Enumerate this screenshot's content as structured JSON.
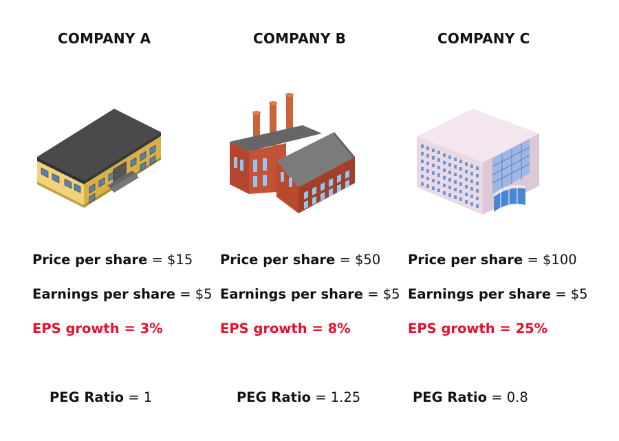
{
  "companies": [
    {
      "title": "COMPANY A",
      "icon": "school-building-icon",
      "price_label": "Price per share",
      "price_value": "$15",
      "eps_label": "Earnings per share",
      "eps_value": "$5",
      "growth_label": "EPS growth",
      "growth_value": "3%",
      "peg_label": "PEG Ratio",
      "peg_value": "1"
    },
    {
      "title": "COMPANY B",
      "icon": "factory-icon",
      "price_label": "Price per share",
      "price_value": "$50",
      "eps_label": "Earnings per share",
      "eps_value": "$5",
      "growth_label": "EPS growth",
      "growth_value": "8%",
      "peg_label": "PEG Ratio",
      "peg_value": "1.25"
    },
    {
      "title": "COMPANY C",
      "icon": "office-building-icon",
      "price_label": "Price per share",
      "price_value": "$100",
      "eps_label": "Earnings per share",
      "eps_value": "$5",
      "growth_label": "EPS growth",
      "growth_value": "25%",
      "peg_label": "PEG Ratio",
      "peg_value": "0.8"
    }
  ],
  "equals": "=",
  "colors": {
    "growth": "#e8102a",
    "text": "#111111"
  }
}
